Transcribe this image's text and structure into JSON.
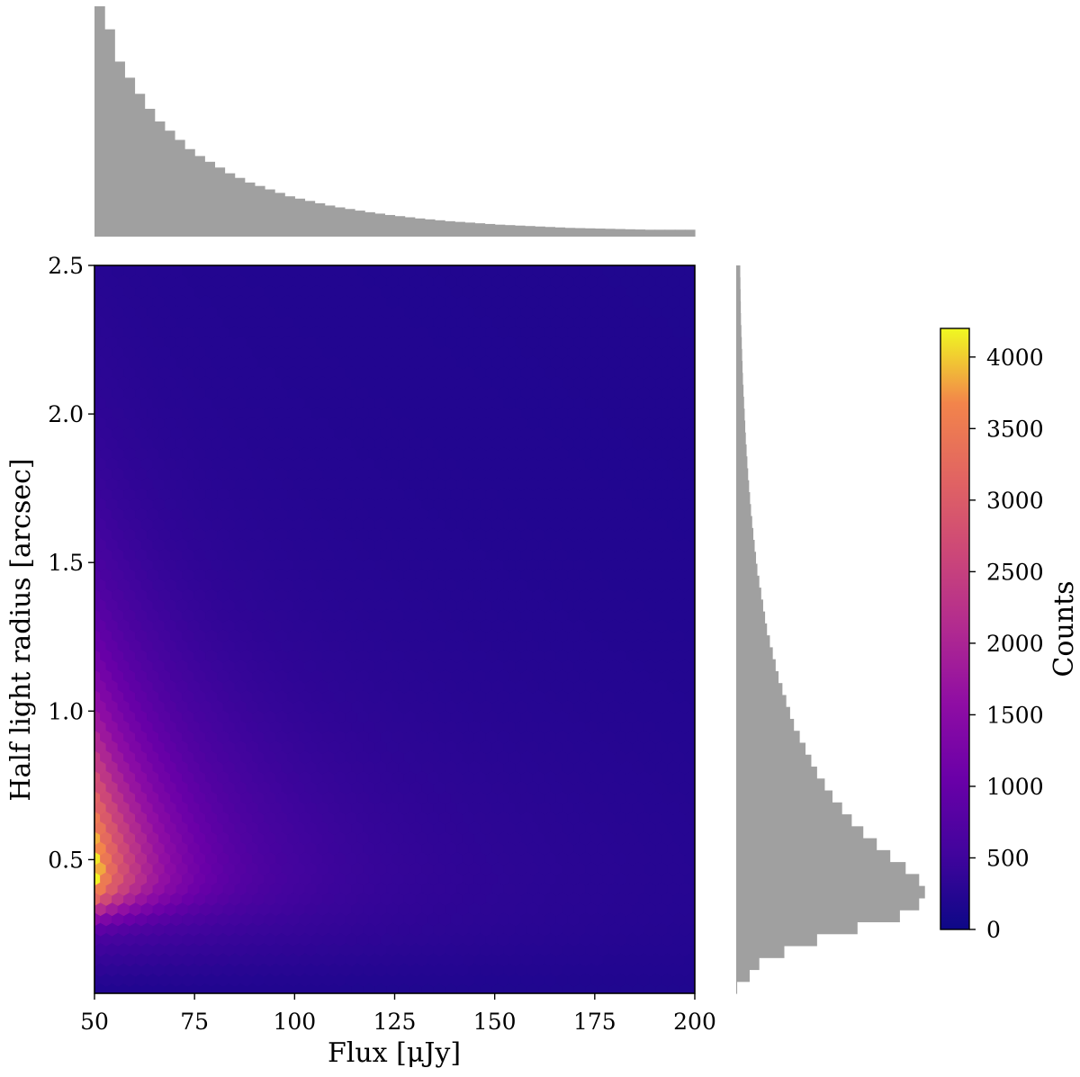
{
  "chart_data": {
    "type": "heatmap",
    "subtype": "hexbin joint plot with marginal histograms",
    "xlabel": "Flux [μJy]",
    "ylabel": "Half light radius [arcsec]",
    "xlim": [
      50,
      200
    ],
    "ylim": [
      0.05,
      2.5
    ],
    "x_ticks": [
      50,
      75,
      100,
      125,
      150,
      175,
      200
    ],
    "y_ticks": [
      0.5,
      1.0,
      1.5,
      2.0,
      2.5
    ],
    "y_tick_labels": [
      "0.5",
      "1.0",
      "1.5",
      "2.0",
      "2.5"
    ],
    "colormap": "plasma",
    "colorbar": {
      "label": "Counts",
      "range": [
        0,
        4200
      ],
      "ticks": [
        0,
        500,
        1000,
        1500,
        2000,
        2500,
        3000,
        3500,
        4000
      ]
    },
    "density_model": {
      "peak_count": 4200,
      "peak_flux": 50,
      "peak_radius": 0.45,
      "background_count": 190
    },
    "top_histogram": {
      "axis": "Flux [μJy]",
      "bin_start": 50,
      "bin_width": 2.5,
      "relative_heights": [
        1.0,
        0.9,
        0.76,
        0.69,
        0.62,
        0.555,
        0.5,
        0.46,
        0.42,
        0.38,
        0.35,
        0.325,
        0.3,
        0.275,
        0.255,
        0.235,
        0.22,
        0.205,
        0.19,
        0.175,
        0.165,
        0.155,
        0.145,
        0.135,
        0.127,
        0.12,
        0.113,
        0.106,
        0.1,
        0.094,
        0.089,
        0.084,
        0.079,
        0.075,
        0.071,
        0.067,
        0.064,
        0.061,
        0.058,
        0.055,
        0.052,
        0.05,
        0.048,
        0.046,
        0.044,
        0.042,
        0.04,
        0.038,
        0.037,
        0.036,
        0.035,
        0.034,
        0.033,
        0.032,
        0.031,
        0.03,
        0.03,
        0.03,
        0.03,
        0.03
      ]
    },
    "right_histogram": {
      "axis": "Half light radius [arcsec]",
      "bin_start": 0.05,
      "bin_width": 0.04,
      "relative_heights": [
        0.005,
        0.07,
        0.12,
        0.25,
        0.42,
        0.63,
        0.85,
        0.95,
        0.98,
        0.95,
        0.88,
        0.8,
        0.73,
        0.66,
        0.6,
        0.55,
        0.5,
        0.46,
        0.42,
        0.39,
        0.36,
        0.33,
        0.3,
        0.28,
        0.26,
        0.24,
        0.22,
        0.205,
        0.19,
        0.175,
        0.16,
        0.15,
        0.14,
        0.13,
        0.12,
        0.11,
        0.103,
        0.096,
        0.089,
        0.083,
        0.077,
        0.072,
        0.067,
        0.062,
        0.058,
        0.054,
        0.05,
        0.047,
        0.044,
        0.041,
        0.038,
        0.035,
        0.033,
        0.031,
        0.029,
        0.027,
        0.025,
        0.024,
        0.023,
        0.022,
        0.021
      ]
    }
  }
}
